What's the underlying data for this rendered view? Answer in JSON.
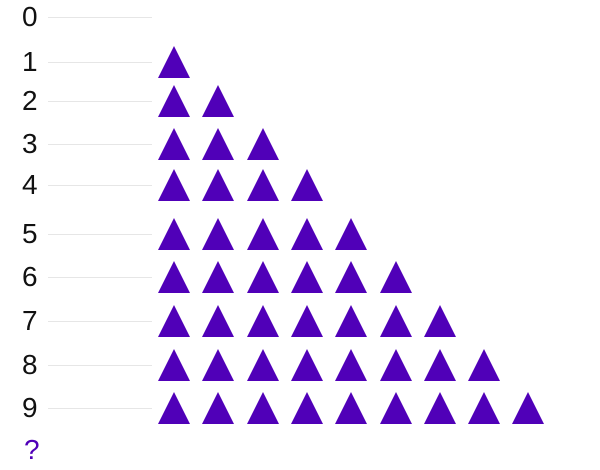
{
  "chart_data": {
    "type": "pictograph",
    "categories": [
      "0",
      "1",
      "2",
      "3",
      "4",
      "5",
      "6",
      "7",
      "8",
      "9"
    ],
    "values": [
      0,
      1,
      2,
      3,
      4,
      5,
      6,
      7,
      8,
      9
    ],
    "icon": "triangle-icon",
    "icon_color": "#5000b8",
    "question_label": "?",
    "question_color": "#5000b8",
    "label_color": "#111111"
  }
}
